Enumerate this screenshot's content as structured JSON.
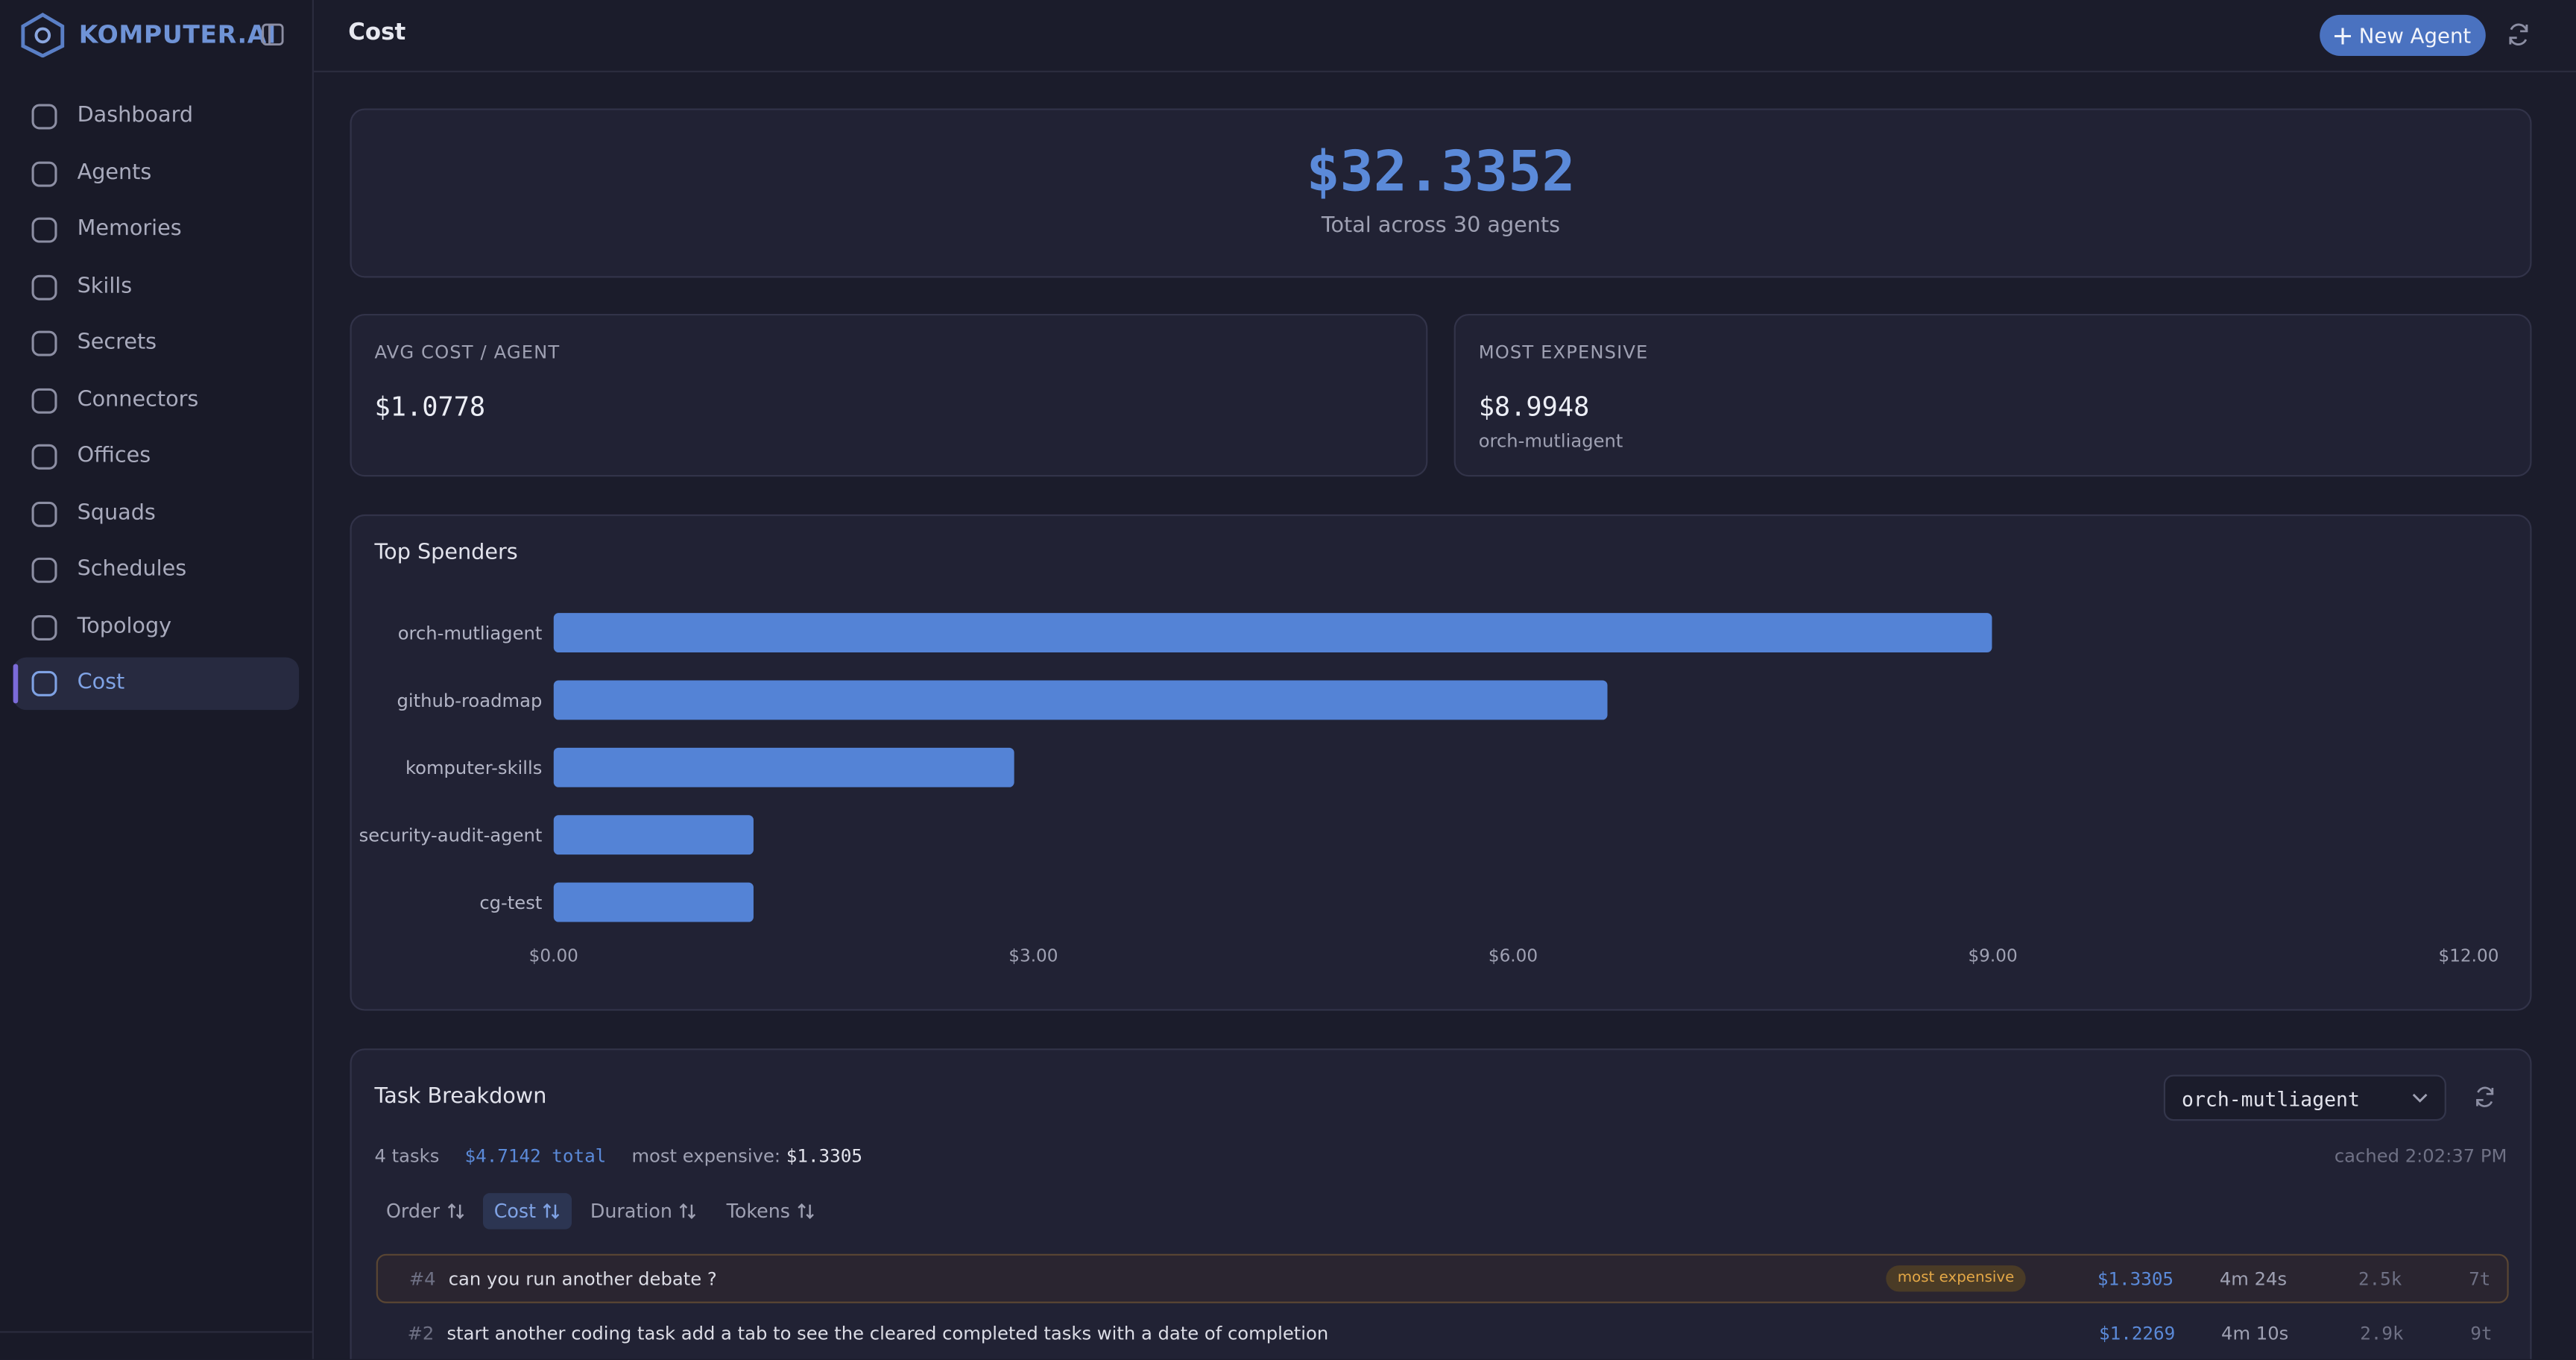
{
  "brand": "KOMPUTER.AI",
  "nav": [
    {
      "label": "Dashboard",
      "active": false
    },
    {
      "label": "Agents",
      "active": false
    },
    {
      "label": "Memories",
      "active": false
    },
    {
      "label": "Skills",
      "active": false
    },
    {
      "label": "Secrets",
      "active": false
    },
    {
      "label": "Connectors",
      "active": false
    },
    {
      "label": "Offices",
      "active": false
    },
    {
      "label": "Squads",
      "active": false
    },
    {
      "label": "Schedules",
      "active": false
    },
    {
      "label": "Topology",
      "active": false
    },
    {
      "label": "Cost",
      "active": true
    }
  ],
  "header": {
    "title": "Cost",
    "new_agent_button": "New Agent"
  },
  "total": {
    "value": "$32.3352",
    "caption": "Total across 30 agents"
  },
  "avg": {
    "label": "AVG COST / AGENT",
    "value": "$1.0778"
  },
  "most_expensive": {
    "label": "MOST EXPENSIVE",
    "value": "$8.9948",
    "agent": "orch-mutliagent"
  },
  "chart_data": {
    "type": "bar",
    "orientation": "horizontal",
    "title": "Top Spenders",
    "categories": [
      "orch-mutliagent",
      "github-roadmap",
      "komputer-skills",
      "security-audit-agent",
      "cg-test"
    ],
    "values": [
      8.9948,
      6.59,
      2.88,
      1.25,
      1.25
    ],
    "color": "#5483d6",
    "xlim": [
      0,
      12
    ],
    "xticks": [
      {
        "value": 0,
        "label": "$0.00"
      },
      {
        "value": 3,
        "label": "$3.00"
      },
      {
        "value": 6,
        "label": "$6.00"
      },
      {
        "value": 9,
        "label": "$9.00"
      },
      {
        "value": 12,
        "label": "$12.00"
      }
    ],
    "grid": false
  },
  "task_breakdown": {
    "title": "Task Breakdown",
    "selected_agent": "orch-mutliagent",
    "task_count": "4 tasks",
    "total": "$4.7142 total",
    "most_expensive_label": "most expensive:",
    "most_expensive_value": "$1.3305",
    "cached": "cached 2:02:37 PM",
    "sort_options": [
      {
        "label": "Order",
        "active": false
      },
      {
        "label": "Cost",
        "active": true
      },
      {
        "label": "Duration",
        "active": false
      },
      {
        "label": "Tokens",
        "active": false
      }
    ],
    "rows": [
      {
        "id": "#4",
        "text": "can you run another debate ?",
        "badge": "most expensive",
        "cost": "$1.3305",
        "duration": "4m 24s",
        "tokens": "2.5k",
        "turns": "7t"
      },
      {
        "id": "#2",
        "text": "start another coding task add a tab to see the cleared completed tasks with a date of completion",
        "cost": "$1.2269",
        "duration": "4m 10s",
        "tokens": "2.9k",
        "turns": "9t"
      }
    ]
  }
}
